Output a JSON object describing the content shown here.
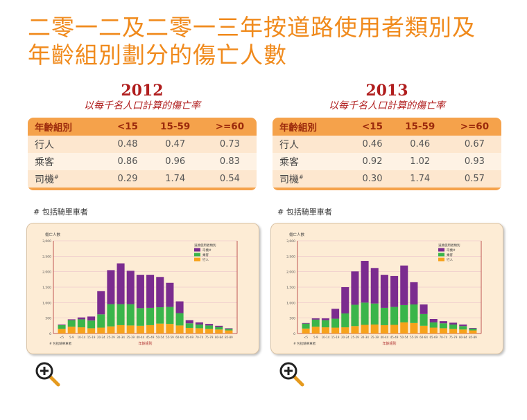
{
  "title_line1": "二零一二及二零一三年按道路使用者類別及",
  "title_line2": "年齡組別劃分的傷亡人數",
  "panels": [
    {
      "year": "2012",
      "subtitle": "以每千名人口計算的傷亡率",
      "table": {
        "headers": [
          "年齡組別",
          "<15",
          "15-59",
          ">=60"
        ],
        "rows": [
          {
            "label": "行人",
            "values": [
              "0.48",
              "0.47",
              "0.73"
            ]
          },
          {
            "label": "乘客",
            "values": [
              "0.86",
              "0.96",
              "0.83"
            ]
          },
          {
            "label": "司機",
            "sup": "#",
            "values": [
              "0.29",
              "1.74",
              "0.54"
            ]
          }
        ]
      },
      "note": "# 包括騎單車者"
    },
    {
      "year": "2013",
      "subtitle": "以每千名人口計算的傷亡率",
      "table": {
        "headers": [
          "年齡組別",
          "<15",
          "15-59",
          ">=60"
        ],
        "rows": [
          {
            "label": "行人",
            "values": [
              "0.46",
              "0.46",
              "0.67"
            ]
          },
          {
            "label": "乘客",
            "values": [
              "0.92",
              "1.02",
              "0.93"
            ]
          },
          {
            "label": "司機",
            "sup": "#",
            "values": [
              "0.30",
              "1.74",
              "0.57"
            ]
          }
        ]
      },
      "note": "# 包括騎單車者"
    }
  ],
  "colors": {
    "driver": "#7b2c8f",
    "passenger": "#3ab54a",
    "pedestrian": "#f7a21b"
  },
  "chart_data": [
    {
      "type": "bar",
      "stacked": true,
      "ylabel": "傷亡人數",
      "xlabel": "年齡組別",
      "ylim": [
        0,
        3000
      ],
      "yticks": [
        "0",
        "500",
        "1,000",
        "1,500",
        "2,000",
        "2,500",
        "3,000"
      ],
      "legend_title": "道路使用者類別",
      "legend_position": "top-right",
      "footnote": "# 包括騎單車者",
      "categories": [
        "<5",
        "5-9",
        "10-14",
        "15-19",
        "20-24",
        "25-29",
        "30-34",
        "35-39",
        "40-44",
        "45-49",
        "50-54",
        "55-59",
        "60-64",
        "65-69",
        "70-74",
        "75-79",
        "80-84",
        "85-89"
      ],
      "series": [
        {
          "name": "行人",
          "values": [
            150,
            220,
            200,
            170,
            190,
            230,
            270,
            260,
            250,
            270,
            320,
            310,
            260,
            180,
            170,
            150,
            130,
            100
          ]
        },
        {
          "name": "乘客",
          "values": [
            120,
            210,
            260,
            250,
            430,
            720,
            680,
            690,
            570,
            560,
            530,
            550,
            400,
            150,
            120,
            110,
            80,
            50
          ]
        },
        {
          "name": "司機",
          "sup": "#",
          "values": [
            20,
            30,
            60,
            130,
            750,
            1100,
            1320,
            1080,
            1080,
            1070,
            980,
            780,
            380,
            100,
            70,
            50,
            40,
            20
          ]
        }
      ]
    },
    {
      "type": "bar",
      "stacked": true,
      "ylabel": "傷亡人數",
      "xlabel": "年齡組別",
      "ylim": [
        0,
        3000
      ],
      "yticks": [
        "0",
        "500",
        "1,000",
        "1,500",
        "2,000",
        "2,500",
        "3,000"
      ],
      "legend_title": "道路使用者類別",
      "legend_position": "top-right",
      "footnote": "# 包括騎單車者",
      "categories": [
        "<5",
        "5-9",
        "10-14",
        "15-19",
        "20-24",
        "25-29",
        "30-34",
        "35-39",
        "40-44",
        "45-49",
        "50-54",
        "55-59",
        "60-64",
        "65-69",
        "70-74",
        "75-79",
        "80-84",
        "85-89"
      ],
      "series": [
        {
          "name": "行人",
          "values": [
            160,
            220,
            200,
            190,
            200,
            240,
            280,
            290,
            270,
            280,
            360,
            340,
            250,
            190,
            170,
            150,
            130,
            100
          ]
        },
        {
          "name": "乘客",
          "values": [
            160,
            230,
            230,
            290,
            450,
            690,
            720,
            680,
            560,
            580,
            560,
            600,
            380,
            170,
            160,
            140,
            110,
            60
          ]
        },
        {
          "name": "司機",
          "sup": "#",
          "values": [
            20,
            40,
            60,
            320,
            850,
            1080,
            1350,
            1150,
            1070,
            1000,
            1280,
            720,
            310,
            110,
            70,
            60,
            50,
            20
          ]
        }
      ]
    }
  ]
}
